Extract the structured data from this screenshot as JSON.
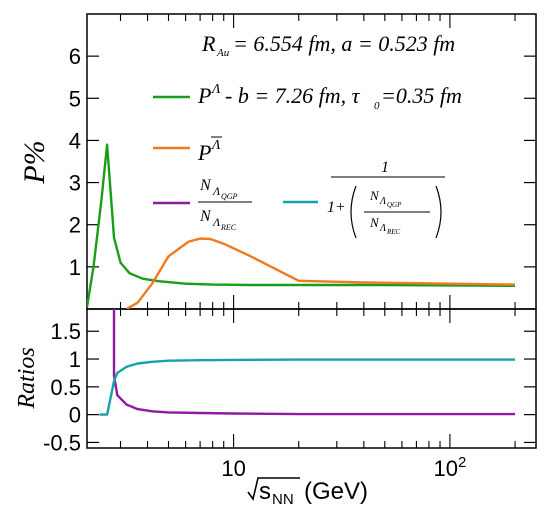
{
  "chart_data": [
    {
      "type": "line",
      "panel": "top",
      "ylabel": "P%",
      "ylim": [
        0,
        7
      ],
      "yticks": [
        1,
        2,
        3,
        4,
        5,
        6
      ],
      "xscale": "log",
      "xlim": [
        2.1,
        250
      ],
      "annotation": "R_Au = 6.554 fm, a = 0.523 fm",
      "series": [
        {
          "name": "P^Λ - b = 7.26 fm, τ0=0.35 fm",
          "color": "#1a9e1a",
          "x": [
            2.1,
            2.25,
            2.45,
            2.6,
            2.8,
            3.0,
            3.3,
            3.8,
            4.5,
            6,
            8,
            12,
            20,
            40,
            100,
            200
          ],
          "y": [
            0.05,
            1.0,
            2.6,
            3.9,
            1.7,
            1.1,
            0.85,
            0.72,
            0.66,
            0.6,
            0.58,
            0.57,
            0.57,
            0.57,
            0.56,
            0.55
          ]
        },
        {
          "name": "P^Λ̄",
          "color": "#f07a1e",
          "x": [
            3.2,
            3.6,
            4.2,
            5.0,
            6.2,
            7.0,
            7.8,
            9,
            12,
            20,
            40,
            100,
            200
          ],
          "y": [
            0.0,
            0.15,
            0.6,
            1.25,
            1.6,
            1.67,
            1.66,
            1.55,
            1.25,
            0.67,
            0.63,
            0.6,
            0.58
          ]
        }
      ]
    },
    {
      "type": "line",
      "panel": "bottom",
      "ylabel": "Ratios",
      "xlabel": "√s_NN (GeV)",
      "ylim": [
        -0.6,
        1.9
      ],
      "yticks": [
        -0.5,
        0,
        0.5,
        1,
        1.5
      ],
      "xscale": "log",
      "xlim": [
        2.1,
        250
      ],
      "xticks": [
        10,
        100
      ],
      "xticklabels": [
        "10",
        "10^2"
      ],
      "series": [
        {
          "name": "N_ΛQGP / N_ΛREC",
          "color": "#8e1aa0",
          "x": [
            2.8,
            2.8,
            2.9,
            3.2,
            3.6,
            4.2,
            5,
            7,
            10,
            20,
            50,
            200
          ],
          "y": [
            1.9,
            0.7,
            0.35,
            0.18,
            0.1,
            0.06,
            0.04,
            0.03,
            0.02,
            0.01,
            0.01,
            0.01
          ]
        },
        {
          "name": "1 / (1 + N_ΛQGP / N_ΛREC)",
          "color": "#1aa0a8",
          "x": [
            2.4,
            2.6,
            2.8,
            2.9,
            3.2,
            3.6,
            4.2,
            5,
            7,
            10,
            20,
            50,
            200
          ],
          "y": [
            0.0,
            0.0,
            0.6,
            0.75,
            0.86,
            0.92,
            0.95,
            0.97,
            0.98,
            0.985,
            0.99,
            0.99,
            0.99
          ]
        }
      ]
    }
  ]
}
